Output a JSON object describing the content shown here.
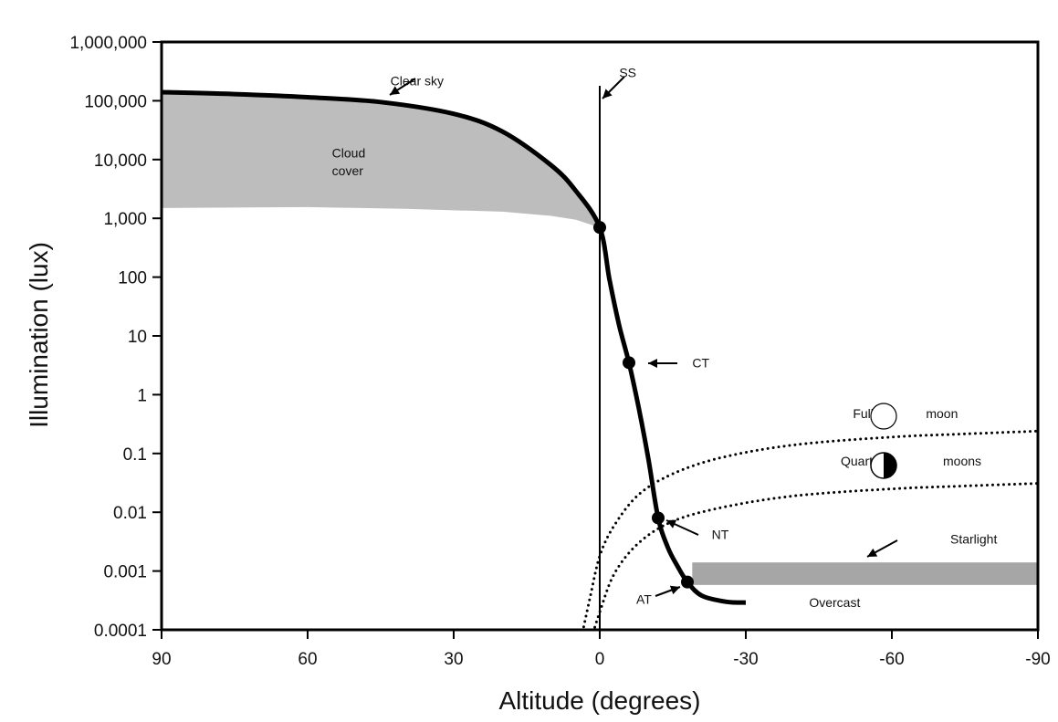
{
  "chart_data": {
    "type": "line",
    "xlabel": "Altitude (degrees)",
    "ylabel": "Illumination (lux)",
    "x_scale": "linear",
    "y_scale": "log",
    "xlim": [
      90,
      -90
    ],
    "ylim": [
      0.0001,
      1000000
    ],
    "x_ticks": [
      90,
      60,
      30,
      0,
      -30,
      -60,
      -90
    ],
    "x_tick_labels": [
      "90",
      "60",
      "30",
      "0",
      "-30",
      "-60",
      "-90"
    ],
    "y_ticks": [
      0.0001,
      0.001,
      0.01,
      0.1,
      1,
      10,
      100,
      1000,
      10000,
      100000,
      1000000
    ],
    "y_tick_labels": [
      "0.0001",
      "0.001",
      "0.01",
      "0.1",
      "1",
      "10",
      "100",
      "1,000",
      "10,000",
      "100,000",
      "1,000,000"
    ],
    "grid": false,
    "series": [
      {
        "style": "solid-thick",
        "points": [
          [
            90,
            140000
          ],
          [
            75,
            130000
          ],
          [
            60,
            115000
          ],
          [
            45,
            95000
          ],
          [
            30,
            60000
          ],
          [
            20,
            30000
          ],
          [
            10,
            8000
          ],
          [
            5,
            3000
          ],
          [
            0,
            700
          ],
          [
            -2,
            90
          ],
          [
            -4,
            15
          ],
          [
            -6,
            3.5
          ],
          [
            -8,
            0.6
          ],
          [
            -10,
            0.08
          ],
          [
            -12,
            0.008
          ],
          [
            -14,
            0.0025
          ],
          [
            -16,
            0.0012
          ],
          [
            -18,
            0.00065
          ],
          [
            -21,
            0.00038
          ],
          [
            -26,
            0.0003
          ],
          [
            -30,
            0.00029
          ]
        ]
      },
      {
        "style": "dotted",
        "points": [
          [
            4,
            6e-05
          ],
          [
            2,
            0.00035
          ],
          [
            0,
            0.0018
          ],
          [
            -3,
            0.006
          ],
          [
            -8,
            0.02
          ],
          [
            -15,
            0.045
          ],
          [
            -25,
            0.085
          ],
          [
            -40,
            0.14
          ],
          [
            -60,
            0.19
          ],
          [
            -75,
            0.215
          ],
          [
            -90,
            0.24
          ]
        ]
      },
      {
        "style": "dotted",
        "points": [
          [
            2,
            6e-05
          ],
          [
            0,
            0.0002
          ],
          [
            -3,
            0.0009
          ],
          [
            -8,
            0.003
          ],
          [
            -15,
            0.007
          ],
          [
            -25,
            0.012
          ],
          [
            -40,
            0.019
          ],
          [
            -60,
            0.025
          ],
          [
            -75,
            0.028
          ],
          [
            -90,
            0.031
          ]
        ]
      }
    ],
    "cloud_cover_band": {
      "upper": [
        [
          90,
          140000
        ],
        [
          75,
          130000
        ],
        [
          60,
          115000
        ],
        [
          45,
          95000
        ],
        [
          30,
          60000
        ],
        [
          20,
          30000
        ],
        [
          10,
          8000
        ],
        [
          5,
          3000
        ],
        [
          0,
          700
        ]
      ],
      "lower": [
        [
          90,
          1500
        ],
        [
          60,
          1550
        ],
        [
          40,
          1450
        ],
        [
          20,
          1300
        ],
        [
          10,
          1100
        ],
        [
          5,
          950
        ],
        [
          0,
          700
        ]
      ],
      "color": "#bdbdbd"
    },
    "starlight_band": {
      "x": [
        -19,
        -90
      ],
      "y": [
        0.00058,
        0.0014
      ],
      "color": "#a6a6a6"
    },
    "markers": [
      {
        "label": "SS",
        "x": 0,
        "y": 700
      },
      {
        "label": "CT",
        "x": -6,
        "y": 3.5
      },
      {
        "label": "NT",
        "x": -12,
        "y": 0.008
      },
      {
        "label": "AT",
        "x": -18,
        "y": 0.00065
      }
    ],
    "annotations": [
      {
        "text": "Clear sky",
        "x": 43,
        "y": 220000
      },
      {
        "text": "SS",
        "x": -4,
        "y": 300000
      },
      {
        "text": "Cloud",
        "x": 55,
        "y": 13000
      },
      {
        "text": "cover",
        "x": 55,
        "y": 6500
      },
      {
        "text": "CT",
        "x": -19,
        "y": 3.5
      },
      {
        "text": "Full",
        "x": -52,
        "y": 0.48
      },
      {
        "text": "moon",
        "x": -67,
        "y": 0.48
      },
      {
        "text": "Quarter",
        "x": -49.5,
        "y": 0.075
      },
      {
        "text": "moons",
        "x": -70.5,
        "y": 0.075
      },
      {
        "text": "NT",
        "x": -23,
        "y": 0.0042
      },
      {
        "text": "Starlight",
        "x": -72,
        "y": 0.0035
      },
      {
        "text": "AT",
        "x": -7.5,
        "y": 0.00033
      },
      {
        "text": "Overcast",
        "x": -43,
        "y": 0.00029
      }
    ]
  }
}
